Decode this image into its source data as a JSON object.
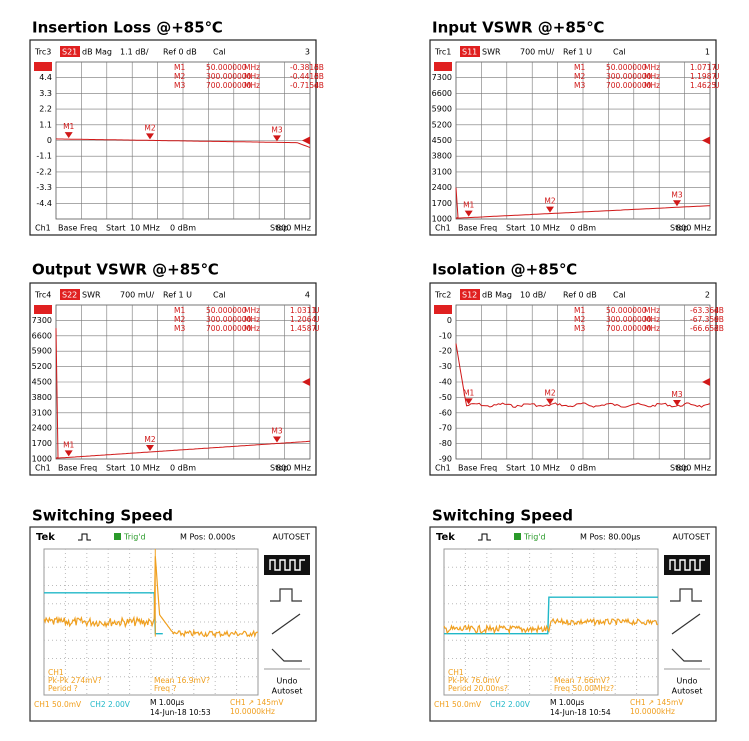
{
  "panels": [
    {
      "title": "Insertion Loss @+85℃",
      "header": [
        "Trc3",
        "S21",
        "dB Mag",
        "1.1 dB/",
        "Ref 0 dB",
        "Cal",
        "3"
      ],
      "yticks": [
        "4.4",
        "3.3",
        "2.2",
        "1.1",
        "0",
        "-1.1",
        "-2.2",
        "-3.3",
        "-4.4"
      ],
      "markers": [
        [
          "M1",
          "50.000000",
          "MHz",
          "-0.3815",
          "dB"
        ],
        [
          "M2",
          "300.000000",
          "MHz",
          "-0.4415",
          "dB"
        ],
        [
          "M3",
          "700.000000",
          "MHz",
          "-0.7154",
          "dB"
        ]
      ],
      "footer": [
        "Ch1",
        "Base Freq",
        "Start",
        "10 MHz",
        "0 dBm",
        "Stop",
        "800 MHz"
      ]
    },
    {
      "title": "Input VSWR @+85℃",
      "header": [
        "Trc1",
        "S11",
        "SWR",
        "700 mU/",
        "Ref 1 U",
        "Cal",
        "1"
      ],
      "yticks": [
        "7300",
        "6600",
        "5900",
        "5200",
        "4500",
        "3800",
        "3100",
        "2400",
        "1700",
        "1000"
      ],
      "markers": [
        [
          "M1",
          "50.000000",
          "MHz",
          "1.0717",
          "U"
        ],
        [
          "M2",
          "300.000000",
          "MHz",
          "1.1987",
          "U"
        ],
        [
          "M3",
          "700.000000",
          "MHz",
          "1.4625",
          "U"
        ]
      ],
      "footer": [
        "Ch1",
        "Base Freq",
        "Start",
        "10 MHz",
        "0 dBm",
        "Stop",
        "800 MHz"
      ]
    },
    {
      "title": "Output VSWR @+85℃",
      "header": [
        "Trc4",
        "S22",
        "SWR",
        "700 mU/",
        "Ref 1 U",
        "Cal",
        "4"
      ],
      "yticks": [
        "7300",
        "6600",
        "5900",
        "5200",
        "4500",
        "3800",
        "3100",
        "2400",
        "1700",
        "1000"
      ],
      "markers": [
        [
          "M1",
          "50.000000",
          "MHz",
          "1.0311",
          "U"
        ],
        [
          "M2",
          "300.000000",
          "MHz",
          "1.2064",
          "U"
        ],
        [
          "M3",
          "700.000000",
          "MHz",
          "1.4587",
          "U"
        ]
      ],
      "footer": [
        "Ch1",
        "Base Freq",
        "Start",
        "10 MHz",
        "0 dBm",
        "Stop",
        "800 MHz"
      ]
    },
    {
      "title": "Isolation @+85℃",
      "header": [
        "Trc2",
        "S12",
        "dB Mag",
        "10 dB/",
        "Ref 0 dB",
        "Cal",
        "2"
      ],
      "yticks": [
        "0",
        "-10",
        "-20",
        "-30",
        "-40",
        "-50",
        "-60",
        "-70",
        "-80",
        "-90"
      ],
      "markers": [
        [
          "M1",
          "50.000000",
          "MHz",
          "-63.364",
          "dB"
        ],
        [
          "M2",
          "300.000000",
          "MHz",
          "-67.359",
          "dB"
        ],
        [
          "M3",
          "700.000000",
          "MHz",
          "-66.652",
          "dB"
        ]
      ],
      "footer": [
        "Ch1",
        "Base Freq",
        "Start",
        "10 MHz",
        "0 dBm",
        "Stop",
        "800 MHz"
      ]
    },
    {
      "title": "Switching Speed",
      "scope_header": [
        "Tek",
        "Trig'd",
        "M Pos: 0.000s",
        "AUTOSET"
      ],
      "readouts": [
        "CH1",
        "Pk-Pk 274mV?",
        "Period ?",
        "Mean 16.9mV?",
        "Freq ?"
      ],
      "bottom": [
        "CH1  50.0mV",
        "CH2  2.00V",
        "M 1.00µs",
        "14-Jun-18 10:53",
        "CH1 ↗ 145mV",
        "10.0000kHz"
      ],
      "side": [
        "Undo",
        "Autoset"
      ]
    },
    {
      "title": "Switching Speed",
      "scope_header": [
        "Tek",
        "Trig'd",
        "M Pos: 80.00µs",
        "AUTOSET"
      ],
      "readouts": [
        "CH1",
        "Pk-Pk 76.0mV",
        "Period 20.00ns?",
        "Mean 7.66mV?",
        "Freq 50.00MHz?"
      ],
      "bottom": [
        "CH1  50.0mV",
        "CH2  2.00V",
        "M 1.00µs",
        "14-Jun-18 10:54",
        "CH1 ↗ 145mV",
        "10.0000kHz"
      ],
      "side": [
        "Undo",
        "Autoset"
      ]
    }
  ]
}
